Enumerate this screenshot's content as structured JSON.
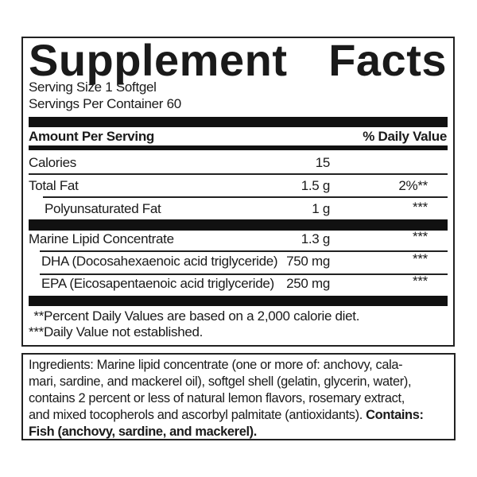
{
  "title": {
    "word1": "Supplement",
    "word2": "Facts"
  },
  "serving_size": "Serving Size 1 Softgel",
  "servings_per_container": "Servings Per Container 60",
  "header": {
    "amount": "Amount Per Serving",
    "dv": "% Daily Value"
  },
  "rows": [
    {
      "name": "Calories",
      "amount": "15",
      "dv": ""
    },
    {
      "name": "Total Fat",
      "amount": "1.5 g",
      "dv": "2%**"
    },
    {
      "name": "Polyunsaturated Fat",
      "amount": "1 g",
      "dv": "***"
    },
    {
      "name": "Marine Lipid Concentrate",
      "amount": "1.3 g",
      "dv": "***"
    },
    {
      "name": "DHA (Docosahexaenoic acid triglyceride)",
      "amount": "750 mg",
      "dv": "***"
    },
    {
      "name": "EPA (Eicosapentaenoic acid triglyceride)",
      "amount": "250 mg",
      "dv": "***"
    }
  ],
  "footnotes": [
    " **Percent Daily Values are based on a 2,000 calorie diet.",
    "***Daily Value not established."
  ],
  "ingredients": {
    "lines": [
      "Ingredients: Marine lipid concentrate (one or more of: anchovy, cala-",
      "mari, sardine, and mackerel oil), softgel shell (gelatin, glycerin, water),",
      "contains 2 percent or less of natural lemon flavors, rosemary extract,",
      "and mixed tocopherols and ascorbyl palmitate (antioxidants). "
    ],
    "contains_label": "Contains:",
    "contains_text": "Fish (anchovy, sardine, and mackerel)."
  }
}
